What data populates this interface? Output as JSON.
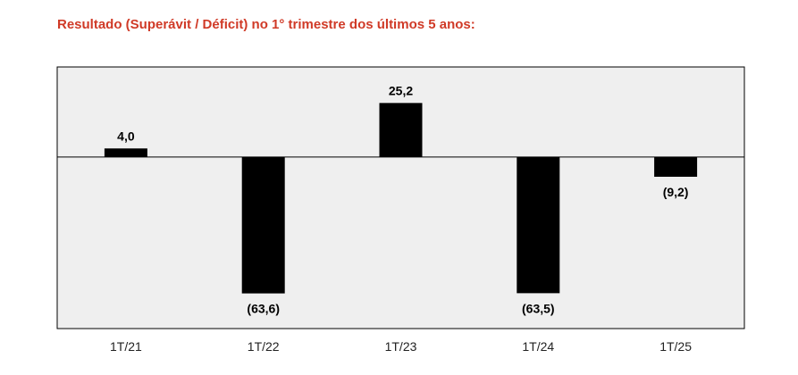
{
  "chart_data": {
    "type": "bar",
    "title": "Resultado (Superávit / Déficit) no 1° trimestre dos últimos 5 anos:",
    "categories": [
      "1T/21",
      "1T/22",
      "1T/23",
      "1T/24",
      "1T/25"
    ],
    "values": [
      4.0,
      -63.6,
      25.2,
      -63.5,
      -9.2
    ],
    "data_labels": [
      "4,0",
      "(63,6)",
      "25,2",
      "(63,5)",
      "(9,2)"
    ],
    "ylim": [
      -80,
      42
    ],
    "grid": false,
    "legend": "none",
    "bar_color": "#000000",
    "plot_background": "#efefef",
    "title_color": "#d03a27"
  }
}
